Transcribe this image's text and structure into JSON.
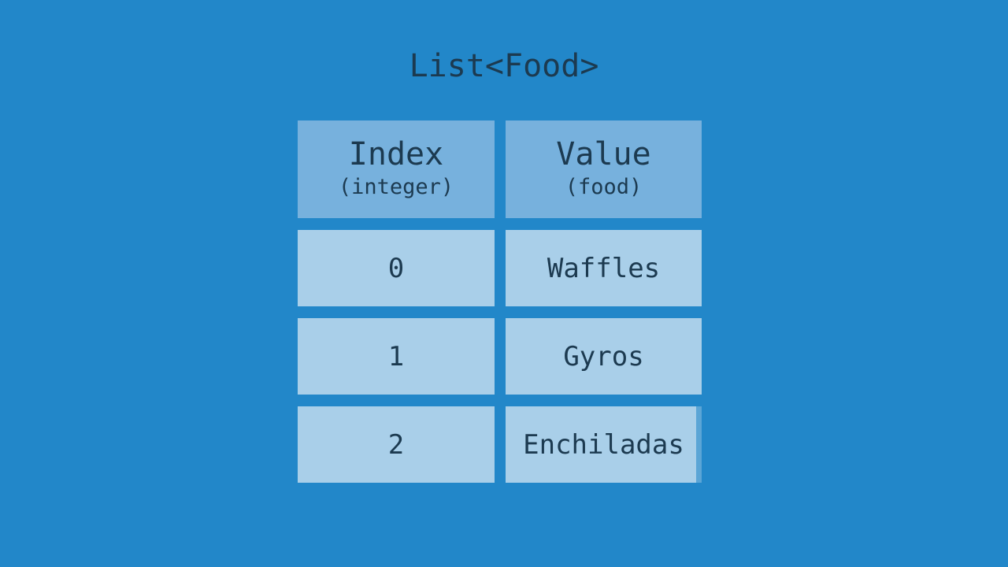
{
  "title": "List<Food>",
  "colors": {
    "background": "#2287C9",
    "header_fill": "#77B1DD",
    "cell_fill": "#A9CFE9",
    "text": "#1C3A50"
  },
  "table": {
    "columns": [
      {
        "label": "Index",
        "type_note": "(integer)"
      },
      {
        "label": "Value",
        "type_note": "(food)"
      }
    ],
    "rows": [
      {
        "index": "0",
        "value": "Waffles"
      },
      {
        "index": "1",
        "value": "Gyros"
      },
      {
        "index": "2",
        "value": "Enchiladas"
      }
    ]
  }
}
